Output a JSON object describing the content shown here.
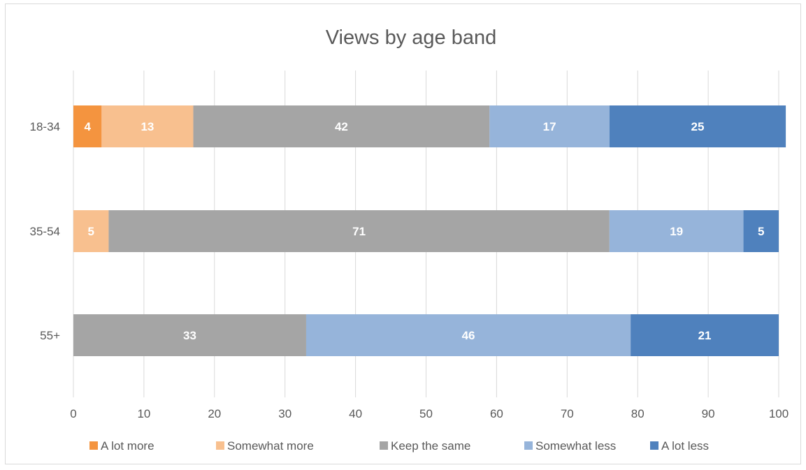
{
  "chart_data": {
    "type": "bar",
    "orientation": "horizontal",
    "stacked": true,
    "title": "Views by age band",
    "categories": [
      "18-34",
      "35-54",
      "55+"
    ],
    "series": [
      {
        "name": "A lot more",
        "color": "#f4943f",
        "values": [
          4,
          0,
          0
        ]
      },
      {
        "name": "Somewhat more",
        "color": "#f8c08f",
        "values": [
          13,
          5,
          0
        ]
      },
      {
        "name": "Keep the same",
        "color": "#a5a5a5",
        "values": [
          42,
          71,
          33
        ]
      },
      {
        "name": "Somewhat less",
        "color": "#96b4da",
        "values": [
          17,
          19,
          46
        ]
      },
      {
        "name": "A lot less",
        "color": "#4f81bd",
        "values": [
          25,
          5,
          21
        ]
      }
    ],
    "xlim": [
      0,
      100
    ],
    "xticks": [
      0,
      10,
      20,
      30,
      40,
      50,
      60,
      70,
      80,
      90,
      100
    ],
    "grid": true,
    "legend": "bottom",
    "data_labels": true
  }
}
